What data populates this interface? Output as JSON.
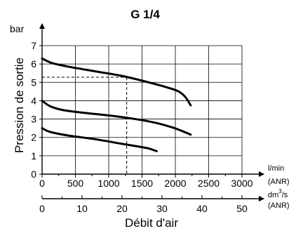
{
  "chart_data": {
    "type": "line",
    "title": "G 1/4",
    "ylabel": "Pression de sortie",
    "yunit": "bar",
    "xlabel": "Débit d'air",
    "x_primary": {
      "unit_line1": "l/min",
      "unit_line2": "(ANR)",
      "range": [
        0,
        3000
      ],
      "ticks": [
        0,
        500,
        1000,
        1500,
        2000,
        2500,
        3000
      ],
      "tick_labels": [
        "0",
        "500",
        "1000",
        "1500",
        "2000",
        "2500",
        "3000"
      ]
    },
    "x_secondary": {
      "unit_line1": "dm",
      "unit_sup": "3",
      "unit_line1_suffix": "/s",
      "unit_line2": "(ANR)",
      "range": [
        0,
        50
      ],
      "ticks": [
        0,
        10,
        20,
        30,
        40,
        50
      ],
      "tick_labels": [
        "0",
        "10",
        "20",
        "30",
        "40",
        "50"
      ]
    },
    "ylim": [
      0,
      7
    ],
    "yticks": [
      0,
      1,
      2,
      3,
      4,
      5,
      6,
      7
    ],
    "ytick_labels": [
      "0",
      "1",
      "2",
      "3",
      "4",
      "5",
      "6",
      "7"
    ],
    "grid": true,
    "series": [
      {
        "points": [
          [
            0,
            6.3
          ],
          [
            150,
            6.05
          ],
          [
            400,
            5.85
          ],
          [
            800,
            5.6
          ],
          [
            1200,
            5.35
          ],
          [
            1600,
            5.0
          ],
          [
            1900,
            4.7
          ],
          [
            2050,
            4.5
          ],
          [
            2150,
            4.2
          ],
          [
            2230,
            3.75
          ]
        ]
      },
      {
        "points": [
          [
            0,
            4.0
          ],
          [
            120,
            3.7
          ],
          [
            300,
            3.5
          ],
          [
            600,
            3.35
          ],
          [
            1000,
            3.2
          ],
          [
            1400,
            3.0
          ],
          [
            1700,
            2.8
          ],
          [
            1950,
            2.55
          ],
          [
            2100,
            2.35
          ],
          [
            2230,
            2.15
          ]
        ]
      },
      {
        "points": [
          [
            0,
            2.5
          ],
          [
            120,
            2.3
          ],
          [
            400,
            2.1
          ],
          [
            800,
            1.9
          ],
          [
            1200,
            1.65
          ],
          [
            1450,
            1.5
          ],
          [
            1600,
            1.4
          ],
          [
            1720,
            1.25
          ]
        ]
      }
    ],
    "reference": {
      "x": 1270,
      "y": 5.28
    }
  }
}
